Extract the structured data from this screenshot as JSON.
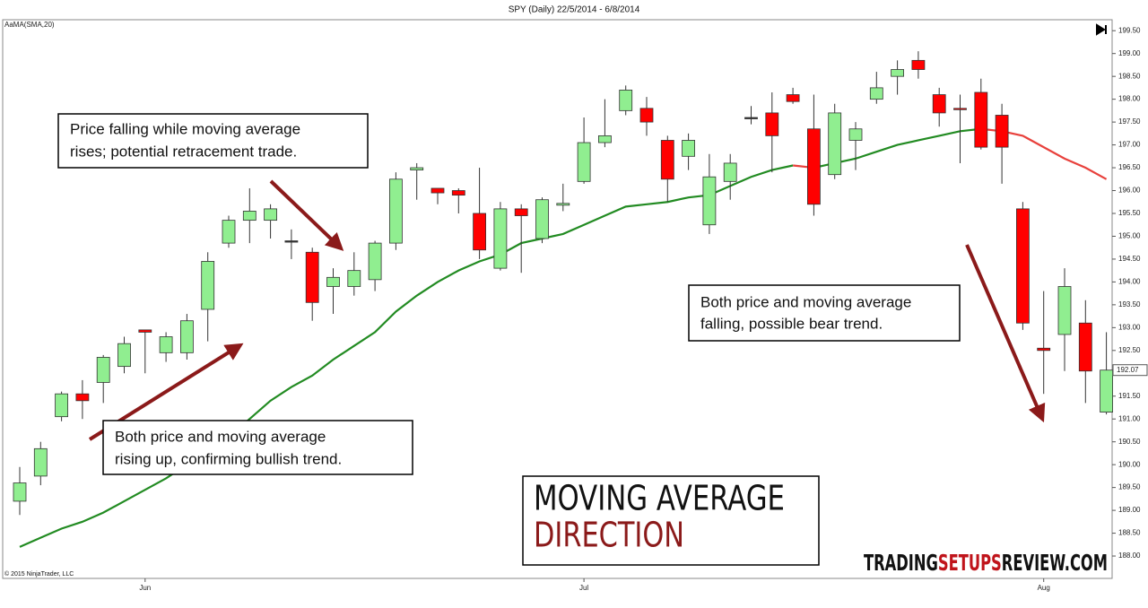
{
  "chart_data": {
    "type": "candlestick",
    "title": "SPY (Daily)  22/5/2014 - 6/8/2014",
    "indicator_label": "AaMA(SMA,20)",
    "copyright": "© 2015 NinjaTrader, LLC",
    "categories": [
      null,
      null,
      null,
      null,
      null,
      null,
      "Jun",
      null,
      null,
      null,
      null,
      null,
      null,
      null,
      null,
      null,
      null,
      null,
      null,
      null,
      null,
      null,
      null,
      null,
      null,
      null,
      null,
      "Jul",
      null,
      null,
      null,
      null,
      null,
      null,
      null,
      null,
      null,
      null,
      null,
      null,
      null,
      null,
      null,
      null,
      null,
      null,
      null,
      null,
      null,
      "Aug",
      null,
      null,
      null
    ],
    "open": [
      189.2,
      189.75,
      191.05,
      191.55,
      191.8,
      192.15,
      192.95,
      192.45,
      192.45,
      193.4,
      194.85,
      195.35,
      195.35,
      194.9,
      194.65,
      193.9,
      193.9,
      194.05,
      194.85,
      196.45,
      196.05,
      196.0,
      195.5,
      194.3,
      195.6,
      194.95,
      195.68,
      196.2,
      197.05,
      197.75,
      197.8,
      197.1,
      196.75,
      195.25,
      196.2,
      197.6,
      197.7,
      198.1,
      197.35,
      196.35,
      197.1,
      198.0,
      198.5,
      198.85,
      198.1,
      197.8,
      198.15,
      197.65,
      195.6,
      192.55,
      192.85,
      193.1,
      191.15
    ],
    "high": [
      189.95,
      190.5,
      191.6,
      191.85,
      192.4,
      192.8,
      192.95,
      192.9,
      193.3,
      194.65,
      195.45,
      196.05,
      195.7,
      195.15,
      194.75,
      194.3,
      194.65,
      194.9,
      196.4,
      196.6,
      196.05,
      196.05,
      196.5,
      195.75,
      195.7,
      195.85,
      196.15,
      197.6,
      198.0,
      198.3,
      198.05,
      197.2,
      197.25,
      196.8,
      196.8,
      197.85,
      198.15,
      198.25,
      198.1,
      197.9,
      197.5,
      198.6,
      198.85,
      199.05,
      198.25,
      198.1,
      198.45,
      197.9,
      195.75,
      193.8,
      194.3,
      193.6,
      192.9
    ],
    "low": [
      188.9,
      189.55,
      190.95,
      191.0,
      191.35,
      192.0,
      192.0,
      192.25,
      192.3,
      192.7,
      194.75,
      194.85,
      194.95,
      194.5,
      193.15,
      193.3,
      193.7,
      193.8,
      194.7,
      195.8,
      195.7,
      195.5,
      194.5,
      194.25,
      194.2,
      194.85,
      195.55,
      196.15,
      196.95,
      197.65,
      197.2,
      195.75,
      196.45,
      195.05,
      195.8,
      197.45,
      196.4,
      197.9,
      195.45,
      196.25,
      196.45,
      197.9,
      198.1,
      198.45,
      197.4,
      196.6,
      196.9,
      196.15,
      192.95,
      191.55,
      192.05,
      191.35,
      191.1
    ],
    "close": [
      189.6,
      190.35,
      191.55,
      191.4,
      192.35,
      192.65,
      192.9,
      192.8,
      193.15,
      194.45,
      195.35,
      195.55,
      195.6,
      194.9,
      193.55,
      194.1,
      194.25,
      194.85,
      196.25,
      196.5,
      195.95,
      195.9,
      194.7,
      195.6,
      195.45,
      195.8,
      195.72,
      197.05,
      197.2,
      198.2,
      197.5,
      196.25,
      197.1,
      196.3,
      196.6,
      197.6,
      197.2,
      197.95,
      195.7,
      197.7,
      197.35,
      198.25,
      198.65,
      198.65,
      197.7,
      197.78,
      196.95,
      196.95,
      193.1,
      192.5,
      193.9,
      192.05,
      192.07
    ],
    "moving_average": [
      188.2,
      188.4,
      188.6,
      188.75,
      188.95,
      189.2,
      189.45,
      189.7,
      190.0,
      190.3,
      190.6,
      191.0,
      191.4,
      191.7,
      191.95,
      192.3,
      192.6,
      192.9,
      193.35,
      193.7,
      194.0,
      194.25,
      194.45,
      194.6,
      194.85,
      194.95,
      195.05,
      195.25,
      195.45,
      195.65,
      195.7,
      195.75,
      195.85,
      195.9,
      196.1,
      196.3,
      196.45,
      196.55,
      196.5,
      196.6,
      196.7,
      196.85,
      197.0,
      197.1,
      197.2,
      197.3,
      197.35,
      197.3,
      197.2,
      196.95,
      196.7,
      196.5,
      196.25
    ],
    "up_color": "#90ee90",
    "down_color": "#ff0000",
    "outline_color": "#333333",
    "ma_rising_color": "#228b22",
    "ma_falling_color": "#e8413c",
    "last_price": 192.07,
    "ylim": [
      187.51,
      199.74
    ],
    "yticks": [
      {
        "value": 188,
        "label": "188.00"
      },
      {
        "value": 188.5,
        "label": "188.50"
      },
      {
        "value": 189,
        "label": "189.00"
      },
      {
        "value": 189.5,
        "label": "189.50"
      },
      {
        "value": 190,
        "label": "190.00"
      },
      {
        "value": 190.5,
        "label": "190.50"
      },
      {
        "value": 191,
        "label": "191.00"
      },
      {
        "value": 191.5,
        "label": "191.50"
      },
      {
        "value": 192,
        "label": "192.00"
      },
      {
        "value": 192.5,
        "label": "192.50"
      },
      {
        "value": 193,
        "label": "193.00"
      },
      {
        "value": 193.5,
        "label": "193.50"
      },
      {
        "value": 194,
        "label": "194.00"
      },
      {
        "value": 194.5,
        "label": "194.50"
      },
      {
        "value": 195,
        "label": "195.00"
      },
      {
        "value": 195.5,
        "label": "195.50"
      },
      {
        "value": 196,
        "label": "196.00"
      },
      {
        "value": 196.5,
        "label": "196.50"
      },
      {
        "value": 197,
        "label": "197.00"
      },
      {
        "value": 197.5,
        "label": "197.50"
      },
      {
        "value": 198,
        "label": "198.00"
      },
      {
        "value": 198.5,
        "label": "198.50"
      },
      {
        "value": 199,
        "label": "199.00"
      },
      {
        "value": 199.5,
        "label": "199.50"
      }
    ],
    "annotations": [
      [
        "Price falling while moving average",
        "rises; potential retracement trade."
      ],
      [
        "Both price and moving average",
        "rising up, confirming bullish trend."
      ],
      [
        "Both price and moving average",
        "falling, possible bear trend."
      ]
    ],
    "headline": [
      "MOVING AVERAGE",
      "DIRECTION"
    ],
    "logo": [
      "TRADING",
      "SETUPS",
      "REVIEW.COM"
    ]
  }
}
